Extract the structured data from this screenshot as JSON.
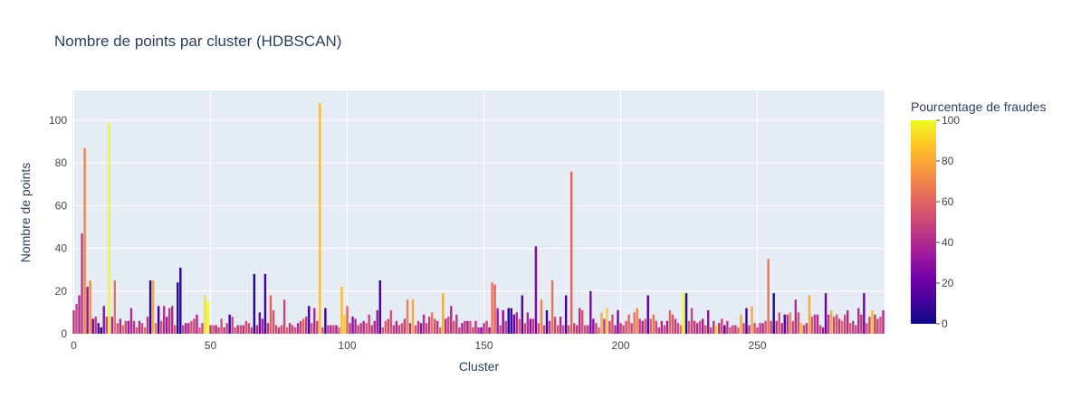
{
  "chart_data": {
    "type": "bar",
    "title": "Nombre de points par cluster (HDBSCAN)",
    "x_label": "Cluster",
    "y_label": "Nombre de points",
    "colorbar_title": "Pourcentage de fraudes",
    "colorscale": [
      "#0d0887",
      "#46039f",
      "#7201a8",
      "#9c179e",
      "#bd3786",
      "#d8576b",
      "#ed7953",
      "#fb9f3a",
      "#fdca26",
      "#f0f921"
    ],
    "clim": [
      0,
      100
    ],
    "cticks": [
      0,
      20,
      40,
      60,
      80,
      100
    ],
    "xlim": [
      -0.5,
      296.5
    ],
    "xticks": [
      0,
      50,
      100,
      150,
      200,
      250
    ],
    "ylim": [
      0,
      114
    ],
    "yticks": [
      0,
      20,
      40,
      60,
      80,
      100
    ],
    "grid": true,
    "x": [
      0,
      1,
      2,
      3,
      4,
      5,
      6,
      7,
      8,
      9,
      10,
      11,
      12,
      13,
      14,
      15,
      16,
      17,
      18,
      19,
      20,
      21,
      22,
      23,
      24,
      25,
      26,
      27,
      28,
      29,
      30,
      31,
      32,
      33,
      34,
      35,
      36,
      37,
      38,
      39,
      40,
      41,
      42,
      43,
      44,
      45,
      46,
      47,
      48,
      49,
      50,
      51,
      52,
      53,
      54,
      55,
      56,
      57,
      58,
      59,
      60,
      61,
      62,
      63,
      64,
      65,
      66,
      67,
      68,
      69,
      70,
      71,
      72,
      73,
      74,
      75,
      76,
      77,
      78,
      79,
      80,
      81,
      82,
      83,
      84,
      85,
      86,
      87,
      88,
      89,
      90,
      91,
      92,
      93,
      94,
      95,
      96,
      97,
      98,
      99,
      100,
      101,
      102,
      103,
      104,
      105,
      106,
      107,
      108,
      109,
      110,
      111,
      112,
      113,
      114,
      115,
      116,
      117,
      118,
      119,
      120,
      121,
      122,
      123,
      124,
      125,
      126,
      127,
      128,
      129,
      130,
      131,
      132,
      133,
      134,
      135,
      136,
      137,
      138,
      139,
      140,
      141,
      142,
      143,
      144,
      145,
      146,
      147,
      148,
      149,
      150,
      151,
      152,
      153,
      154,
      155,
      156,
      157,
      158,
      159,
      160,
      161,
      162,
      163,
      164,
      165,
      166,
      167,
      168,
      169,
      170,
      171,
      172,
      173,
      174,
      175,
      176,
      177,
      178,
      179,
      180,
      181,
      182,
      183,
      184,
      185,
      186,
      187,
      188,
      189,
      190,
      191,
      192,
      193,
      194,
      195,
      196,
      197,
      198,
      199,
      200,
      201,
      202,
      203,
      204,
      205,
      206,
      207,
      208,
      209,
      210,
      211,
      212,
      213,
      214,
      215,
      216,
      217,
      218,
      219,
      220,
      221,
      222,
      223,
      224,
      225,
      226,
      227,
      228,
      229,
      230,
      231,
      232,
      233,
      234,
      235,
      236,
      237,
      238,
      239,
      240,
      241,
      242,
      243,
      244,
      245,
      246,
      247,
      248,
      249,
      250,
      251,
      252,
      253,
      254,
      255,
      256,
      257,
      258,
      259,
      260,
      261,
      262,
      263,
      264,
      265,
      266,
      267,
      268,
      269,
      270,
      271,
      272,
      273,
      274,
      275,
      276,
      277,
      278,
      279,
      280,
      281,
      282,
      283,
      284,
      285,
      286,
      287,
      288,
      289,
      290,
      291,
      292,
      293,
      294,
      295,
      296
    ],
    "values": [
      11,
      14,
      18,
      47,
      87,
      22,
      25,
      7,
      8,
      5,
      3,
      13,
      8,
      99,
      8,
      25,
      5,
      7,
      4,
      6,
      6,
      12,
      6,
      3,
      6,
      5,
      3,
      8,
      25,
      25,
      5,
      13,
      6,
      13,
      8,
      12,
      13,
      4,
      24,
      31,
      4,
      5,
      5,
      6,
      7,
      9,
      3,
      5,
      18,
      15,
      4,
      4,
      4,
      3,
      7,
      3,
      5,
      9,
      8,
      3,
      4,
      4,
      4,
      6,
      5,
      3,
      28,
      4,
      10,
      7,
      28,
      5,
      18,
      11,
      4,
      3,
      4,
      16,
      3,
      5,
      4,
      3,
      5,
      6,
      7,
      8,
      13,
      5,
      12,
      6,
      108,
      3,
      12,
      4,
      4,
      4,
      4,
      3,
      22,
      9,
      13,
      5,
      8,
      7,
      4,
      5,
      6,
      5,
      9,
      4,
      6,
      11,
      25,
      3,
      6,
      7,
      11,
      4,
      6,
      4,
      5,
      7,
      16,
      5,
      16,
      4,
      6,
      5,
      9,
      5,
      8,
      10,
      7,
      6,
      3,
      19,
      7,
      8,
      13,
      6,
      9,
      3,
      5,
      6,
      6,
      6,
      3,
      6,
      3,
      3,
      5,
      6,
      3,
      24,
      23,
      12,
      4,
      11,
      6,
      12,
      12,
      9,
      10,
      7,
      18,
      5,
      10,
      7,
      7,
      41,
      5,
      16,
      4,
      11,
      6,
      25,
      8,
      4,
      8,
      4,
      18,
      4,
      76,
      5,
      4,
      12,
      11,
      4,
      4,
      20,
      7,
      5,
      3,
      10,
      7,
      12,
      6,
      9,
      4,
      11,
      5,
      4,
      6,
      9,
      5,
      10,
      12,
      7,
      6,
      7,
      18,
      7,
      9,
      6,
      3,
      6,
      4,
      6,
      11,
      9,
      7,
      5,
      4,
      19,
      19,
      6,
      12,
      6,
      5,
      6,
      7,
      4,
      11,
      3,
      6,
      4,
      5,
      7,
      4,
      6,
      3,
      4,
      4,
      3,
      9,
      5,
      12,
      4,
      13,
      5,
      3,
      5,
      5,
      6,
      35,
      6,
      19,
      6,
      10,
      5,
      9,
      9,
      10,
      6,
      16,
      10,
      5,
      4,
      5,
      18,
      8,
      9,
      9,
      4,
      3,
      19,
      9,
      11,
      8,
      9,
      7,
      6,
      9,
      11,
      5,
      6,
      4,
      12,
      9,
      19,
      5,
      8,
      11,
      9,
      7,
      8,
      11
    ],
    "colors": [
      45,
      50,
      40,
      45,
      70,
      30,
      72,
      20,
      45,
      15,
      5,
      30,
      50,
      100,
      40,
      65,
      55,
      40,
      60,
      50,
      35,
      40,
      45,
      55,
      40,
      50,
      60,
      45,
      5,
      80,
      65,
      10,
      55,
      40,
      35,
      45,
      40,
      55,
      5,
      5,
      45,
      35,
      40,
      55,
      50,
      40,
      60,
      50,
      95,
      100,
      45,
      55,
      40,
      50,
      55,
      45,
      50,
      10,
      50,
      55,
      45,
      50,
      40,
      55,
      50,
      45,
      5,
      40,
      20,
      35,
      10,
      45,
      60,
      55,
      50,
      45,
      55,
      50,
      60,
      45,
      50,
      55,
      40,
      50,
      60,
      45,
      10,
      55,
      40,
      50,
      85,
      55,
      10,
      45,
      40,
      50,
      35,
      60,
      85,
      90,
      60,
      45,
      30,
      40,
      50,
      45,
      40,
      55,
      50,
      45,
      40,
      35,
      10,
      55,
      60,
      50,
      55,
      45,
      40,
      50,
      55,
      45,
      70,
      40,
      80,
      55,
      45,
      30,
      40,
      50,
      45,
      65,
      55,
      45,
      60,
      80,
      40,
      50,
      40,
      55,
      45,
      50,
      40,
      45,
      35,
      55,
      50,
      45,
      40,
      25,
      45,
      50,
      30,
      65,
      60,
      35,
      50,
      30,
      45,
      5,
      10,
      20,
      40,
      55,
      15,
      50,
      40,
      30,
      45,
      25,
      55,
      70,
      50,
      10,
      45,
      65,
      50,
      55,
      40,
      50,
      10,
      55,
      60,
      50,
      45,
      40,
      55,
      50,
      45,
      25,
      30,
      50,
      60,
      80,
      45,
      90,
      50,
      55,
      40,
      25,
      45,
      50,
      55,
      60,
      50,
      65,
      70,
      45,
      40,
      55,
      15,
      60,
      65,
      50,
      45,
      40,
      50,
      35,
      60,
      55,
      45,
      50,
      65,
      100,
      5,
      55,
      50,
      45,
      40,
      50,
      35,
      55,
      30,
      50,
      45,
      90,
      40,
      50,
      15,
      45,
      55,
      50,
      45,
      60,
      80,
      50,
      10,
      45,
      80,
      55,
      50,
      45,
      40,
      55,
      65,
      50,
      5,
      45,
      55,
      40,
      15,
      45,
      70,
      50,
      40,
      55,
      85,
      50,
      45,
      80,
      55,
      45,
      40,
      50,
      35,
      20,
      45,
      80,
      50,
      55,
      45,
      60,
      50,
      40,
      55,
      45,
      50,
      40,
      45,
      20,
      55,
      50,
      85,
      45,
      50,
      55,
      40
    ]
  }
}
